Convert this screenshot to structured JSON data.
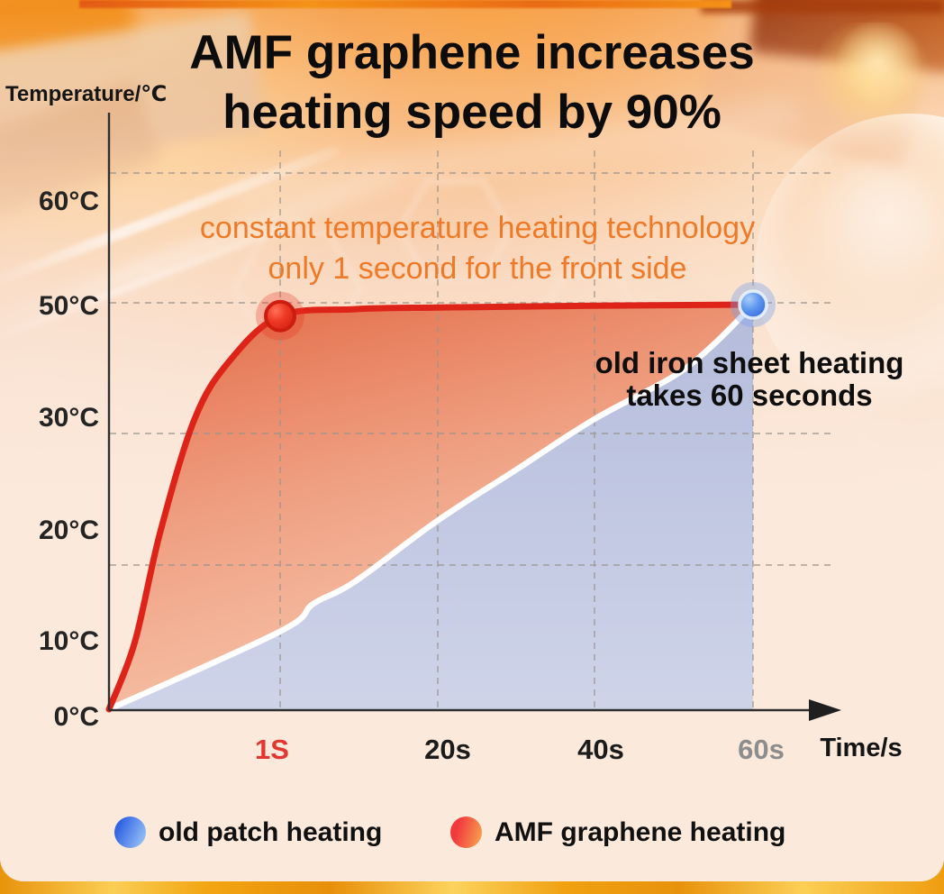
{
  "title": {
    "line1": "AMF graphene increases",
    "line2": "heating speed by 90%"
  },
  "axes": {
    "y_label": "Temperature/℃",
    "x_label": "Time/s",
    "y_ticks": [
      "60°C",
      "50°C",
      "30°C",
      "20°C",
      "10°C",
      "0°C"
    ],
    "x_ticks": [
      "1S",
      "20s",
      "40s",
      "60s"
    ]
  },
  "annotations": {
    "amf": {
      "line1": "constant temperature heating technology",
      "line2": "only 1 second for the front side"
    },
    "old": {
      "line1": "old iron sheet heating",
      "line2": "takes 60 seconds"
    }
  },
  "legend": [
    {
      "label": "old patch heating",
      "swatch_color": "#4a86e8"
    },
    {
      "label": "AMF graphene heating",
      "swatch_color": "#f23a3c"
    }
  ],
  "colors": {
    "amf_line": "#de2418",
    "old_line": "#ffffff",
    "old_fill": "#c3cae4",
    "annotation_orange": "#ee7a28",
    "tick_1s_red": "#e23730",
    "tick_60s_gray": "#8d8d8d",
    "gold_strip": "#f2a512",
    "panel_cream": "#fbe9db"
  },
  "chart_data": {
    "type": "line",
    "title": "AMF graphene increases heating speed by 90%",
    "xlabel": "Time/s",
    "ylabel": "Temperature/℃",
    "x_ticks_s": [
      1,
      20,
      40,
      60
    ],
    "y_ticks_c": [
      0,
      10,
      20,
      30,
      50,
      60
    ],
    "grid": "dashed",
    "legend_position": "bottom",
    "series": [
      {
        "name": "AMF graphene heating",
        "points_t_c": [
          [
            0,
            0
          ],
          [
            0.15,
            10
          ],
          [
            0.3,
            20
          ],
          [
            0.5,
            30
          ],
          [
            0.7,
            40
          ],
          [
            1,
            48
          ],
          [
            10,
            49.2
          ],
          [
            20,
            49.5
          ],
          [
            40,
            49.8
          ],
          [
            60,
            50
          ]
        ]
      },
      {
        "name": "old patch heating",
        "points_t_c": [
          [
            0,
            0
          ],
          [
            1,
            11
          ],
          [
            5,
            13.5
          ],
          [
            10,
            15.5
          ],
          [
            20,
            21
          ],
          [
            30,
            25.5
          ],
          [
            40,
            30
          ],
          [
            50,
            37.5
          ],
          [
            55,
            43
          ],
          [
            60,
            50
          ]
        ]
      }
    ],
    "highlights": [
      {
        "series": "AMF graphene heating",
        "t": 1,
        "temp": 48,
        "marker": "red-dot"
      },
      {
        "series": "old patch heating",
        "t": 60,
        "temp": 50,
        "marker": "blue-dot"
      }
    ]
  }
}
